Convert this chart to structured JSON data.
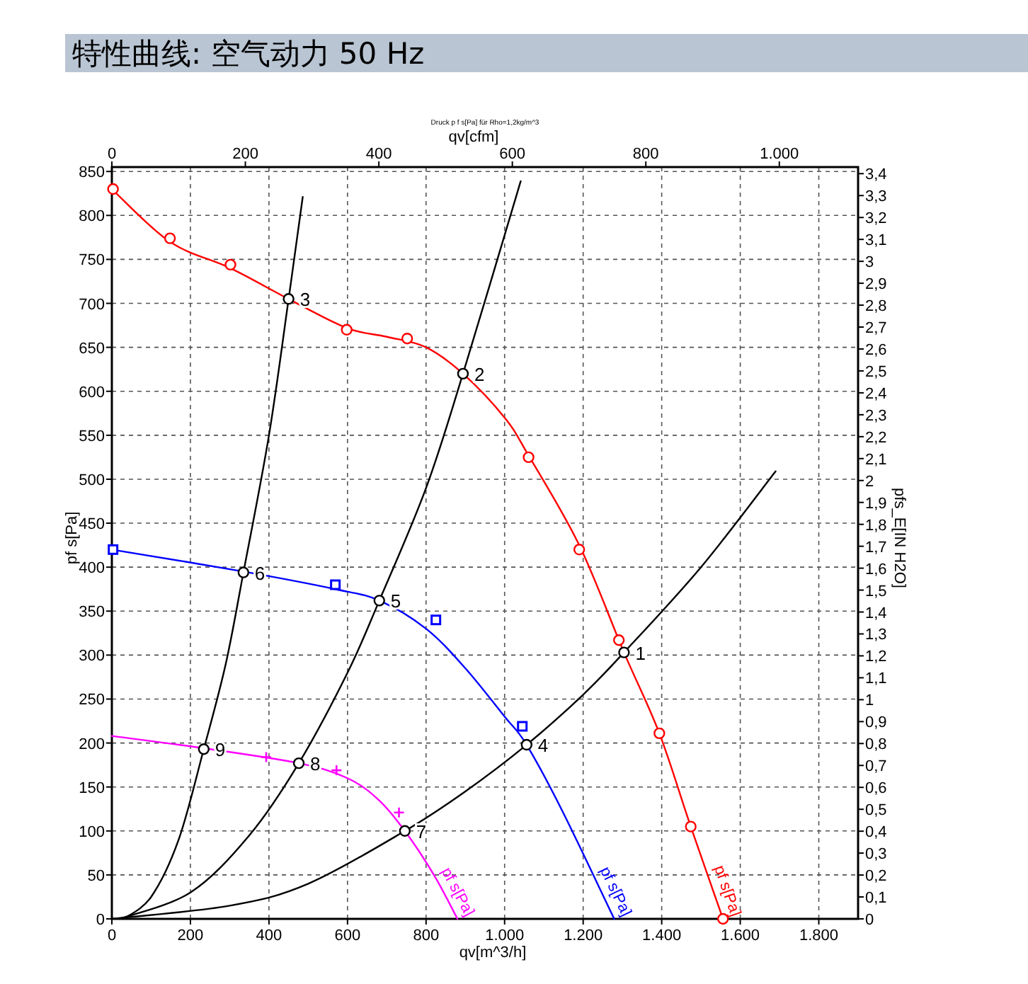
{
  "chart_data": {
    "type": "line",
    "title": "特性曲线: 空气动力 50 Hz",
    "subtitle": "Druck p f s[Pa] für Rho=1,2kg/m^3",
    "xlabel": "qv[m^3/h]",
    "x2label": "qv[cfm]",
    "ylabel": "pf s[Pa]",
    "y2label": "pfs_E[IN H2O]",
    "xlim": [
      0,
      1900
    ],
    "ylim": [
      0,
      855
    ],
    "x2lim": [
      0,
      1118
    ],
    "y2lim": [
      0,
      3.43
    ],
    "xticks": [
      0,
      200,
      400,
      600,
      800,
      {
        "value": 1000,
        "label": "1.000"
      },
      {
        "value": 1200,
        "label": "1.200"
      },
      {
        "value": 1400,
        "label": "1.400"
      },
      {
        "value": 1600,
        "label": "1.600"
      },
      {
        "value": 1800,
        "label": "1.800"
      }
    ],
    "x2ticks": [
      0,
      200,
      400,
      600,
      800,
      {
        "value": 1000,
        "label": "1.000"
      }
    ],
    "yticks": [
      0,
      50,
      100,
      150,
      200,
      250,
      300,
      350,
      400,
      450,
      500,
      550,
      600,
      650,
      700,
      750,
      800,
      850
    ],
    "y2ticks": [
      0,
      {
        "value": 0.1,
        "label": "0,1"
      },
      {
        "value": 0.2,
        "label": "0,2"
      },
      {
        "value": 0.3,
        "label": "0,3"
      },
      {
        "value": 0.4,
        "label": "0,4"
      },
      {
        "value": 0.5,
        "label": "0,5"
      },
      {
        "value": 0.6,
        "label": "0,6"
      },
      {
        "value": 0.7,
        "label": "0,7"
      },
      {
        "value": 0.8,
        "label": "0,8"
      },
      {
        "value": 0.9,
        "label": "0,9"
      },
      1,
      {
        "value": 1.1,
        "label": "1,1"
      },
      {
        "value": 1.2,
        "label": "1,2"
      },
      {
        "value": 1.3,
        "label": "1,3"
      },
      {
        "value": 1.4,
        "label": "1,4"
      },
      {
        "value": 1.5,
        "label": "1,5"
      },
      {
        "value": 1.6,
        "label": "1,6"
      },
      {
        "value": 1.7,
        "label": "1,7"
      },
      {
        "value": 1.8,
        "label": "1,8"
      },
      {
        "value": 1.9,
        "label": "1,9"
      },
      2,
      {
        "value": 2.1,
        "label": "2,1"
      },
      {
        "value": 2.2,
        "label": "2,2"
      },
      {
        "value": 2.3,
        "label": "2,3"
      },
      {
        "value": 2.4,
        "label": "2,4"
      },
      {
        "value": 2.5,
        "label": "2,5"
      },
      {
        "value": 2.6,
        "label": "2,6"
      },
      {
        "value": 2.7,
        "label": "2,7"
      },
      {
        "value": 2.8,
        "label": "2,8"
      },
      {
        "value": 2.9,
        "label": "2,9"
      },
      3,
      {
        "value": 3.1,
        "label": "3,1"
      },
      {
        "value": 3.2,
        "label": "3,2"
      },
      {
        "value": 3.3,
        "label": "3,3"
      },
      {
        "value": 3.4,
        "label": "3,4"
      }
    ],
    "grid": true,
    "series": [
      {
        "type": "line",
        "name": "pf s[Pa]",
        "color": "#ff0000",
        "x": [
          0,
          148,
          302,
          450,
          598,
          700,
          800,
          894,
          1000,
          1061,
          1190,
          1304,
          1394,
          1474,
          1556
        ],
        "values": [
          830,
          770,
          740,
          705,
          672,
          662,
          650,
          620,
          570,
          527,
          425,
          303,
          211,
          105,
          0
        ]
      },
      {
        "type": "line",
        "name": "pf s[Pa]",
        "color": "#0000ff",
        "x": [
          0,
          335,
          569,
          681,
          800,
          900,
          1000,
          1056,
          1150,
          1279
        ],
        "values": [
          420,
          395,
          375,
          362,
          330,
          285,
          230,
          198,
          120,
          0
        ]
      },
      {
        "type": "line",
        "name": "pf s[Pa]",
        "color": "#ff00ff",
        "x": [
          0,
          234,
          476,
          600,
          680,
          746,
          820,
          880
        ],
        "values": [
          208,
          194,
          177,
          160,
          135,
          100,
          50,
          0
        ]
      },
      {
        "type": "line",
        "color": "#000000",
        "x": [
          30,
          100,
          170,
          234,
          290,
          335,
          400,
          450,
          486
        ],
        "values": [
          0,
          25,
          90,
          193,
          290,
          394,
          550,
          705,
          821
        ]
      },
      {
        "type": "line",
        "color": "#000000",
        "x": [
          20,
          200,
          350,
          476,
          600,
          681,
          800,
          894,
          1041
        ],
        "values": [
          0,
          30,
          95,
          177,
          280,
          362,
          490,
          620,
          839
        ]
      },
      {
        "type": "line",
        "color": "#000000",
        "x": [
          0,
          300,
          500,
          746,
          900,
          1056,
          1200,
          1304,
          1500,
          1690
        ],
        "values": [
          0,
          15,
          40,
          100,
          145,
          198,
          255,
          303,
          400,
          509
        ]
      },
      {
        "type": "scatter",
        "marker": "circle",
        "color": "#ff0000",
        "x": [
          3,
          148,
          302,
          598,
          752,
          1061,
          1190,
          1291,
          1394,
          1474,
          1556
        ],
        "values": [
          830,
          774,
          744,
          670,
          660,
          525,
          420,
          317,
          211,
          105,
          0
        ]
      },
      {
        "type": "scatter",
        "marker": "square",
        "color": "#0000ff",
        "x": [
          3,
          569,
          825,
          1045
        ],
        "values": [
          420,
          380,
          340,
          219
        ]
      },
      {
        "type": "scatter",
        "marker": "cross",
        "color": "#ff00ff",
        "x": [
          393,
          572,
          731
        ],
        "values": [
          184,
          169,
          121
        ]
      },
      {
        "type": "scatter",
        "marker": "circle",
        "color": "#000000",
        "x": [
          1304,
          894,
          450,
          1056,
          681,
          335,
          746,
          476,
          234
        ],
        "values": [
          303,
          620,
          705,
          198,
          362,
          394,
          100,
          177,
          193
        ]
      }
    ],
    "annotations": [
      {
        "text": "1",
        "x": 1304,
        "y": 303
      },
      {
        "text": "2",
        "x": 894,
        "y": 620
      },
      {
        "text": "3",
        "x": 450,
        "y": 705
      },
      {
        "text": "4",
        "x": 1056,
        "y": 198
      },
      {
        "text": "5",
        "x": 681,
        "y": 362
      },
      {
        "text": "6",
        "x": 335,
        "y": 394
      },
      {
        "text": "7",
        "x": 746,
        "y": 100
      },
      {
        "text": "8",
        "x": 476,
        "y": 177
      },
      {
        "text": "9",
        "x": 234,
        "y": 193
      }
    ]
  }
}
